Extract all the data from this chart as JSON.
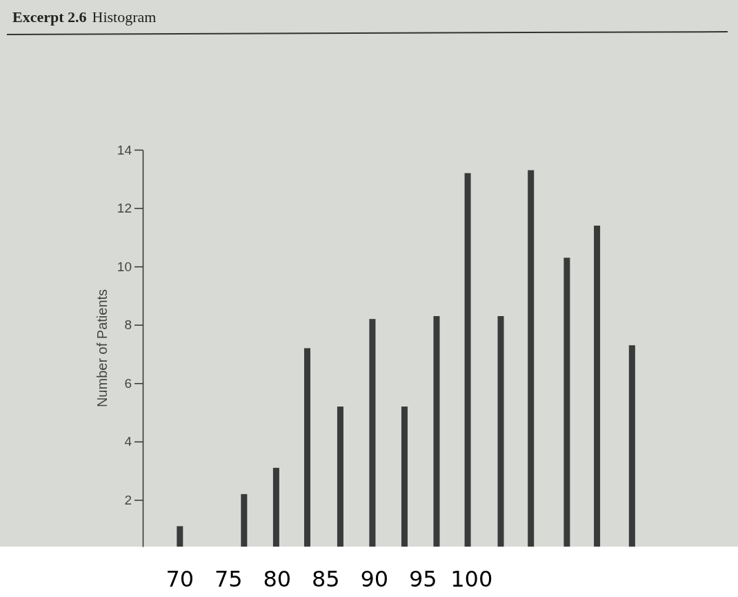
{
  "chart_data": {
    "type": "bar",
    "title": "Excerpt 2.6",
    "subtitle": "Histogram",
    "ylabel": "Number of Patients",
    "x": [
      70,
      76.6,
      79.9,
      83.1,
      86.5,
      89.8,
      93.1,
      96.4,
      99.6,
      103,
      106.1,
      109.8,
      112.9,
      116.5
    ],
    "values": [
      1.1,
      2.2,
      3.1,
      7.2,
      5.2,
      8.2,
      5.2,
      8.3,
      13.2,
      8.3,
      13.3,
      10.3,
      11.4,
      7.3
    ],
    "color": "#3a3a3a",
    "xlim": [
      51.5,
      127.4
    ],
    "xticks": [
      70,
      75,
      80,
      85,
      90,
      95,
      100
    ],
    "ylim": [
      0.4,
      14
    ],
    "yticks": [
      2,
      4,
      6,
      8,
      10,
      12,
      14
    ],
    "grid": false
  }
}
